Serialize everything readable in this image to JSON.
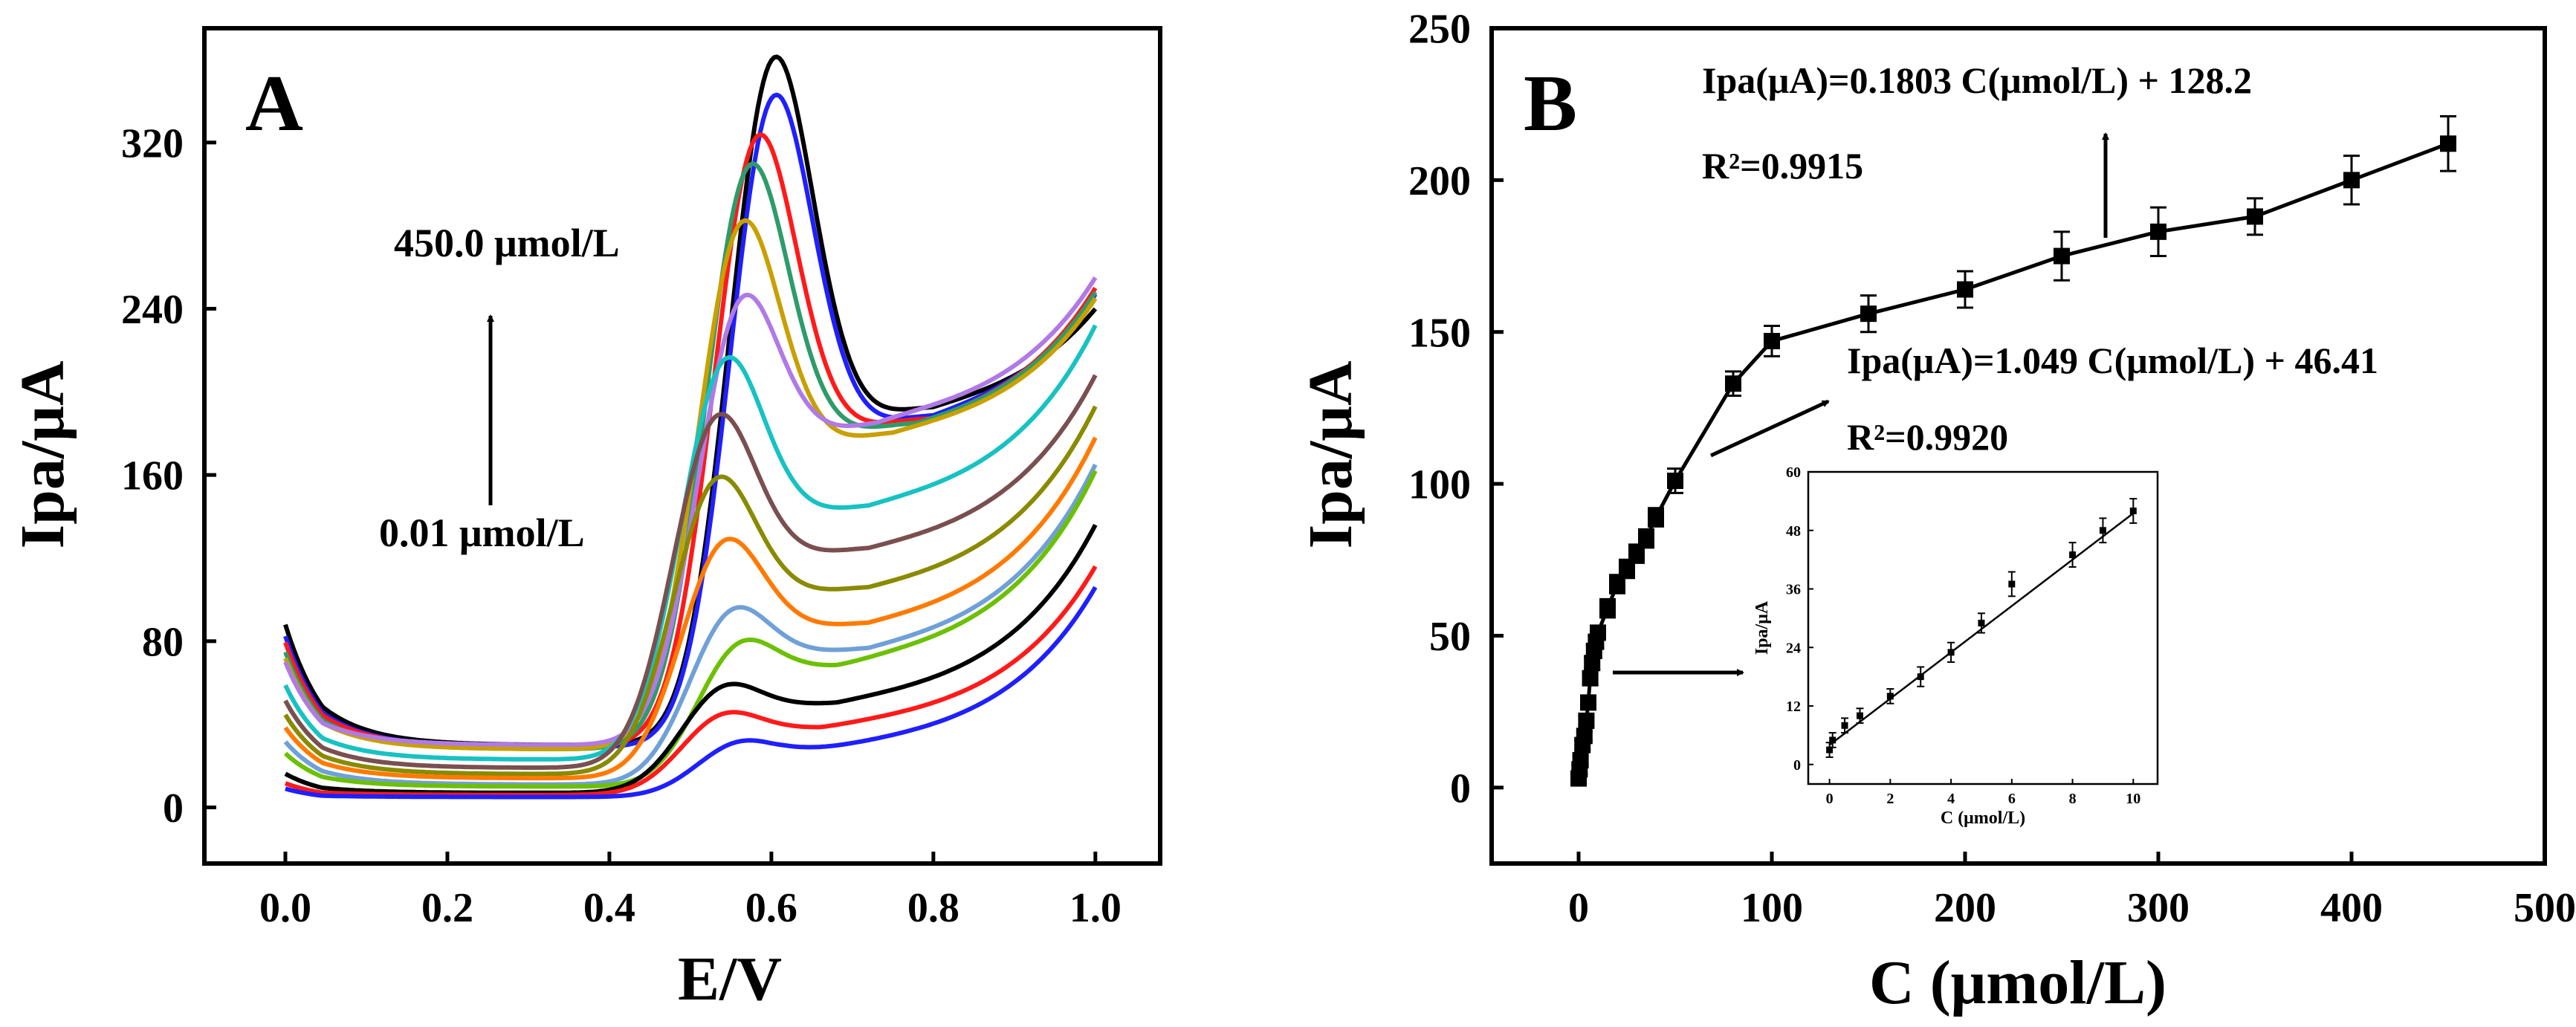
{
  "panels": {
    "A": {
      "letter": "A"
    },
    "B": {
      "letter": "B"
    }
  },
  "chart_data": [
    {
      "panel": "A",
      "type": "line",
      "xlabel": "E/V",
      "ylabel": "Ipa/μA",
      "xlim": [
        -0.1,
        1.08
      ],
      "ylim": [
        -27,
        375
      ],
      "xticks": [
        0.0,
        0.2,
        0.4,
        0.6,
        0.8,
        1.0
      ],
      "xtick_labels": [
        "0.0",
        "0.2",
        "0.4",
        "0.6",
        "0.8",
        "1.0"
      ],
      "yticks": [
        0,
        80,
        160,
        240,
        320
      ],
      "ytick_labels": [
        "0",
        "80",
        "160",
        "240",
        "320"
      ],
      "annotations": {
        "top": "450.0 μmol/L",
        "bottom": "0.01 μmol/L"
      },
      "grid": false,
      "series": [
        {
          "color": "#000000",
          "p": [
            70,
            4,
            30,
            4,
            340,
            0.6,
            0.075,
            194,
            0.8,
            240
          ]
        },
        {
          "color": "#1f1fff",
          "p": [
            65,
            4,
            29,
            4,
            322,
            0.6,
            0.075,
            190,
            0.8,
            247
          ]
        },
        {
          "color": "#ff1a1a",
          "p": [
            62,
            4,
            29,
            4,
            303,
            0.58,
            0.075,
            188,
            0.8,
            250
          ]
        },
        {
          "color": "#2e9b6b",
          "p": [
            58,
            4,
            28,
            4,
            289,
            0.57,
            0.075,
            186,
            0.78,
            248
          ]
        },
        {
          "color": "#c8a000",
          "p": [
            55,
            4,
            28,
            4,
            262,
            0.56,
            0.075,
            182,
            0.75,
            245
          ]
        },
        {
          "color": "#b07ae6",
          "p": [
            52,
            4,
            30,
            4,
            225,
            0.56,
            0.075,
            188,
            0.73,
            255
          ]
        },
        {
          "color": "#17c2c2",
          "p": [
            45,
            4,
            23,
            4,
            200,
            0.54,
            0.075,
            147,
            0.72,
            232
          ]
        },
        {
          "color": "#7a4f4f",
          "p": [
            40,
            4,
            19,
            4,
            175,
            0.53,
            0.075,
            126,
            0.72,
            208
          ]
        },
        {
          "color": "#8a8a00",
          "p": [
            35,
            4,
            16,
            4,
            147,
            0.53,
            0.075,
            107,
            0.72,
            193
          ]
        },
        {
          "color": "#ff7a00",
          "p": [
            30,
            4,
            14,
            4,
            119,
            0.54,
            0.075,
            90,
            0.72,
            178
          ]
        },
        {
          "color": "#6fa0d8",
          "p": [
            25,
            4,
            11,
            4,
            87,
            0.55,
            0.075,
            78,
            0.72,
            165
          ]
        },
        {
          "color": "#6cc000",
          "p": [
            20,
            4,
            10,
            4,
            72,
            0.56,
            0.075,
            71,
            0.68,
            162
          ]
        },
        {
          "color": "#000000",
          "p": [
            12,
            4,
            7,
            4,
            53,
            0.54,
            0.075,
            52,
            0.68,
            136
          ]
        },
        {
          "color": "#ff1a1a",
          "p": [
            8,
            4,
            6,
            4,
            41,
            0.54,
            0.075,
            40,
            0.66,
            116
          ]
        },
        {
          "color": "#1f1fff",
          "p": [
            6,
            4,
            5,
            4,
            29,
            0.56,
            0.075,
            28,
            0.6,
            106
          ]
        }
      ]
    },
    {
      "panel": "B",
      "type": "scatter",
      "xlabel": "C (μmol/L)",
      "ylabel": "Ipa/μA",
      "xlim": [
        -45,
        500
      ],
      "ylim": [
        -25,
        250
      ],
      "xticks": [
        0,
        100,
        200,
        300,
        400,
        500
      ],
      "xtick_labels": [
        "0",
        "100",
        "200",
        "300",
        "400",
        "500"
      ],
      "yticks": [
        0,
        50,
        100,
        150,
        200,
        250
      ],
      "ytick_labels": [
        "0",
        "50",
        "100",
        "150",
        "200",
        "250"
      ],
      "grid": false,
      "x": [
        0.01,
        0.5,
        1,
        2,
        3,
        4,
        5,
        6,
        7,
        8,
        9,
        10,
        15,
        20,
        25,
        30,
        35,
        40,
        50,
        80,
        100,
        150,
        200,
        250,
        300,
        350,
        400,
        450
      ],
      "y": [
        3,
        6,
        9,
        14,
        17,
        22,
        28,
        36,
        41,
        45,
        48,
        51,
        59,
        67,
        72,
        77,
        82,
        89,
        101,
        133,
        147,
        156,
        164,
        175,
        183,
        188,
        200,
        212
      ],
      "err": [
        1.5,
        1.5,
        1.5,
        1.5,
        1.5,
        1.5,
        2,
        2,
        2,
        2,
        2,
        2,
        3,
        3,
        3,
        3,
        3,
        3,
        4,
        4,
        5,
        6,
        6,
        8,
        8,
        6,
        8,
        9
      ],
      "fits": [
        {
          "equation": "Ipa(μA)=1.049 C(μmol/L) + 46.41",
          "r2": "R²=0.9920",
          "slope": 1.049,
          "intercept": 46.41,
          "x_range": [
            10,
            100
          ]
        },
        {
          "equation": "Ipa(μA)=0.1803 C(μmol/L) + 128.2",
          "r2": "R²=0.9915",
          "slope": 0.1803,
          "intercept": 128.2,
          "x_range": [
            100,
            450
          ]
        }
      ],
      "inset": {
        "type": "scatter",
        "xlabel": "C (μmol/L)",
        "ylabel": "Ipa/μA",
        "xlim": [
          -0.7,
          10.8
        ],
        "ylim": [
          -4,
          60
        ],
        "xticks": [
          0,
          2,
          4,
          6,
          8,
          10
        ],
        "xtick_labels": [
          "0",
          "2",
          "4",
          "6",
          "8",
          "10"
        ],
        "yticks": [
          0,
          12,
          24,
          36,
          48,
          60
        ],
        "ytick_labels": [
          "0",
          "12",
          "24",
          "36",
          "48",
          "60"
        ],
        "x": [
          0,
          0.1,
          0.5,
          1,
          2,
          3,
          4,
          5,
          6,
          8,
          9,
          10
        ],
        "y": [
          3,
          5,
          8,
          10,
          14,
          18,
          23,
          29,
          37,
          43,
          48,
          52
        ],
        "err": [
          1.5,
          1.5,
          1.5,
          1.5,
          1.5,
          2,
          2,
          2,
          2.5,
          2.5,
          2.5,
          2.5
        ],
        "fit": {
          "slope": 4.75,
          "intercept": 4.0
        }
      }
    }
  ]
}
